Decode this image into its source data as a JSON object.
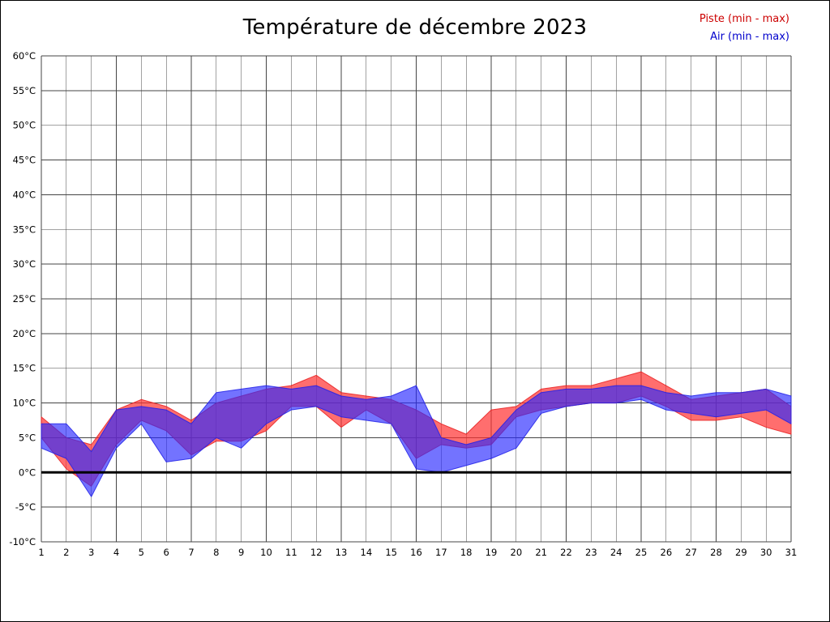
{
  "title": "Température de décembre 2023",
  "legend": [
    {
      "label": "Piste (min - max)",
      "color": "#cc0000"
    },
    {
      "label": "Air (min - max)",
      "color": "#0000cc"
    }
  ],
  "chart_data": {
    "type": "area",
    "title": "Température de décembre 2023",
    "xlabel": "",
    "ylabel": "",
    "ylim": [
      -10,
      60
    ],
    "ytick_values": [
      60,
      55,
      50,
      45,
      40,
      35,
      30,
      25,
      20,
      15,
      10,
      5,
      0,
      -5,
      -10
    ],
    "ytick_labels": [
      "60°C",
      "55°C",
      "50°C",
      "45°C",
      "40°C",
      "35°C",
      "30°C",
      "25°C",
      "20°C",
      "15°C",
      "10°C",
      "5°C",
      "0°C",
      "-5°C",
      "-10°C"
    ],
    "x": [
      1,
      2,
      3,
      4,
      5,
      6,
      7,
      8,
      9,
      10,
      11,
      12,
      13,
      14,
      15,
      16,
      17,
      18,
      19,
      20,
      21,
      22,
      23,
      24,
      25,
      26,
      27,
      28,
      29,
      30,
      31
    ],
    "xtick_labels": [
      "1",
      "2",
      "3",
      "4",
      "5",
      "6",
      "7",
      "8",
      "9",
      "10",
      "11",
      "12",
      "13",
      "14",
      "15",
      "16",
      "17",
      "18",
      "19",
      "20",
      "21",
      "22",
      "23",
      "24",
      "25",
      "26",
      "27",
      "28",
      "29",
      "30",
      "31"
    ],
    "grid": true,
    "zero_line": true,
    "legend_position": "top-right",
    "series": [
      {
        "name": "Piste (min - max)",
        "color": "#ff3030",
        "stroke": "#e82020",
        "opacity": 0.7,
        "min": [
          5,
          0.5,
          -2,
          4,
          7.5,
          6,
          2.5,
          4.5,
          4.5,
          6,
          9.5,
          9.5,
          6.5,
          9,
          7,
          2,
          4,
          3.5,
          4,
          8,
          9,
          9.5,
          10,
          10,
          11,
          9.5,
          7.5,
          7.5,
          8,
          6.5,
          5.5
        ],
        "max": [
          8,
          5,
          4,
          9,
          10.5,
          9.5,
          7.5,
          10,
          11,
          12,
          12.5,
          14,
          11.5,
          11,
          10.5,
          9,
          7,
          5.5,
          9,
          9.5,
          12,
          12.5,
          12.5,
          13.5,
          14.5,
          12.5,
          10.5,
          11,
          11.5,
          12,
          9.5
        ]
      },
      {
        "name": "Air (min - max)",
        "color": "#2828ff",
        "stroke": "#2020e8",
        "opacity": 0.65,
        "min": [
          3.5,
          2,
          -3.5,
          3.5,
          7,
          1.5,
          2,
          5,
          3.5,
          7,
          9,
          9.5,
          8,
          7.5,
          7,
          0.5,
          0,
          1,
          2,
          3.5,
          8.5,
          9.5,
          10,
          10,
          10.5,
          9,
          8.5,
          8,
          8.5,
          9,
          7
        ],
        "max": [
          7,
          7,
          3,
          9,
          9.5,
          9,
          7,
          11.5,
          12,
          12.5,
          12,
          12.5,
          11,
          10.5,
          11,
          12.5,
          5,
          4,
          5,
          9,
          11.5,
          12,
          12,
          12.5,
          12.5,
          11.5,
          11,
          11.5,
          11.5,
          12,
          11
        ]
      }
    ]
  }
}
